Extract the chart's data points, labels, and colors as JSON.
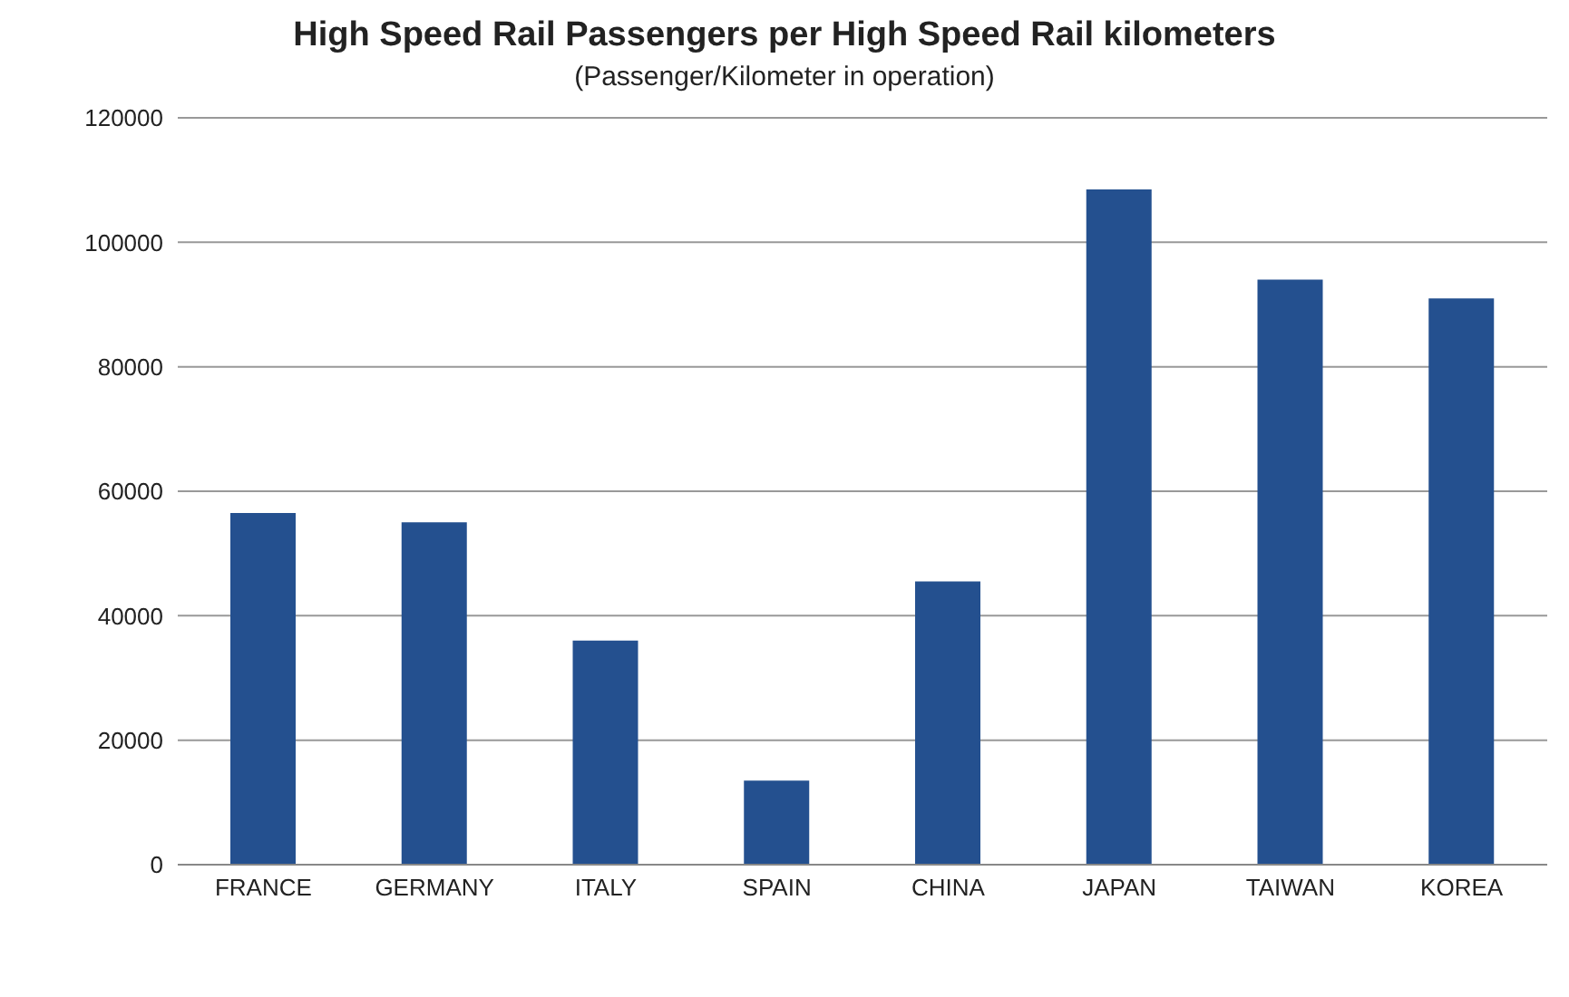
{
  "chart_data": {
    "type": "bar",
    "title": "High Speed Rail Passengers per High Speed Rail kilometers",
    "subtitle": "(Passenger/Kilometer in operation)",
    "categories": [
      "FRANCE",
      "GERMANY",
      "ITALY",
      "SPAIN",
      "CHINA",
      "JAPAN",
      "TAIWAN",
      "KOREA"
    ],
    "values": [
      56500,
      55000,
      36000,
      13500,
      45500,
      108500,
      94000,
      91000
    ],
    "color": "#24508f",
    "ylim": [
      0,
      120000
    ],
    "yticks": [
      0,
      20000,
      40000,
      60000,
      80000,
      100000,
      120000
    ],
    "grid": "y",
    "legend": false
  }
}
